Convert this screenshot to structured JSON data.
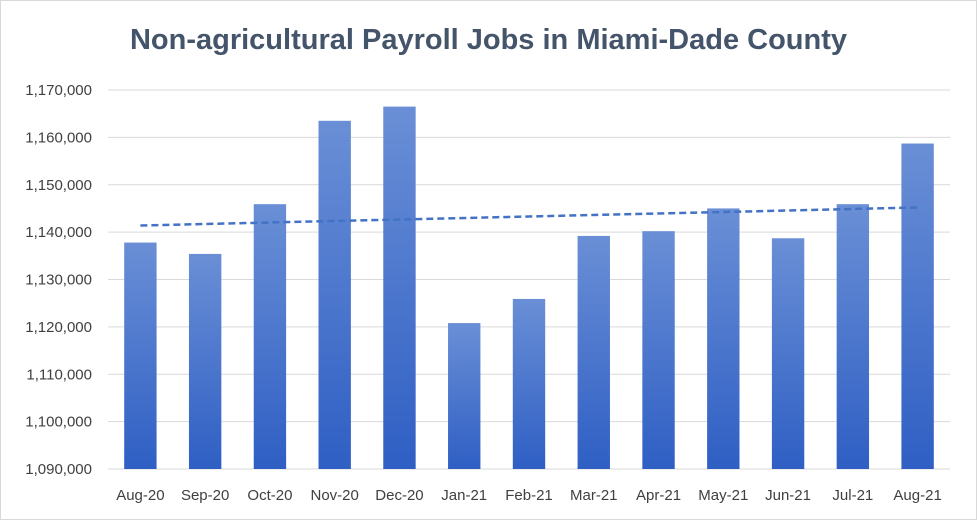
{
  "chart_data": {
    "type": "bar",
    "title": "Non-agricultural Payroll Jobs in Miami-Dade County",
    "xlabel": "",
    "ylabel": "",
    "categories": [
      "Aug-20",
      "Sep-20",
      "Oct-20",
      "Nov-20",
      "Dec-20",
      "Jan-21",
      "Feb-21",
      "Mar-21",
      "Apr-21",
      "May-21",
      "Jun-21",
      "Jul-21",
      "Aug-21"
    ],
    "values": [
      1137800,
      1135400,
      1145900,
      1163500,
      1166500,
      1120800,
      1125900,
      1139200,
      1140200,
      1145000,
      1138700,
      1145900,
      1158700
    ],
    "ylim": [
      1090000,
      1170000
    ],
    "yticks": [
      "1,090,000",
      "1,100,000",
      "1,110,000",
      "1,120,000",
      "1,130,000",
      "1,140,000",
      "1,150,000",
      "1,160,000",
      "1,170,000"
    ],
    "ytick_values": [
      1090000,
      1100000,
      1110000,
      1120000,
      1130000,
      1140000,
      1150000,
      1160000,
      1170000
    ],
    "trendline": {
      "start": 1141400,
      "end": 1145200,
      "style": "dashed"
    },
    "grid": true,
    "legend": "none",
    "colors": {
      "bar_top": "#6a8fd6",
      "bar_bottom": "#2f5fc4",
      "trend": "#4472c4",
      "grid": "#d9d9d9"
    }
  }
}
